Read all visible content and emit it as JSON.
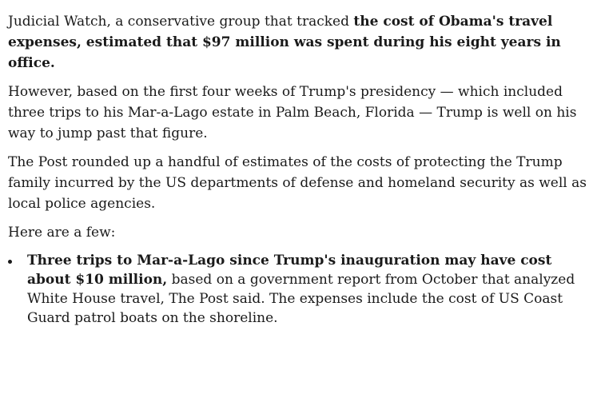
{
  "article": {
    "p1": {
      "lead": "Judicial Watch, a conservative group that tracked ",
      "bold": "the cost of Obama's travel expenses, estimated that $97 million was spent during his eight years in office."
    },
    "p2": "However, based on the first four weeks of Trump's presidency — which included three trips to his Mar-a-Lago estate in Palm Beach, Florida — Trump is well on his way to jump past that figure.",
    "p3": "The Post rounded up a handful of estimates of the costs of protecting the Trump family incurred by the US departments of defense and homeland security as well as local police agencies.",
    "p4": "Here are a few:",
    "bullets": [
      {
        "bold": "Three trips to Mar-a-Lago since Trump's inauguration may have cost about $10 million,",
        "rest": " based on a government report from October that analyzed White House travel, The Post said. The expenses include the cost of US Coast Guard patrol boats on the shoreline."
      }
    ]
  }
}
